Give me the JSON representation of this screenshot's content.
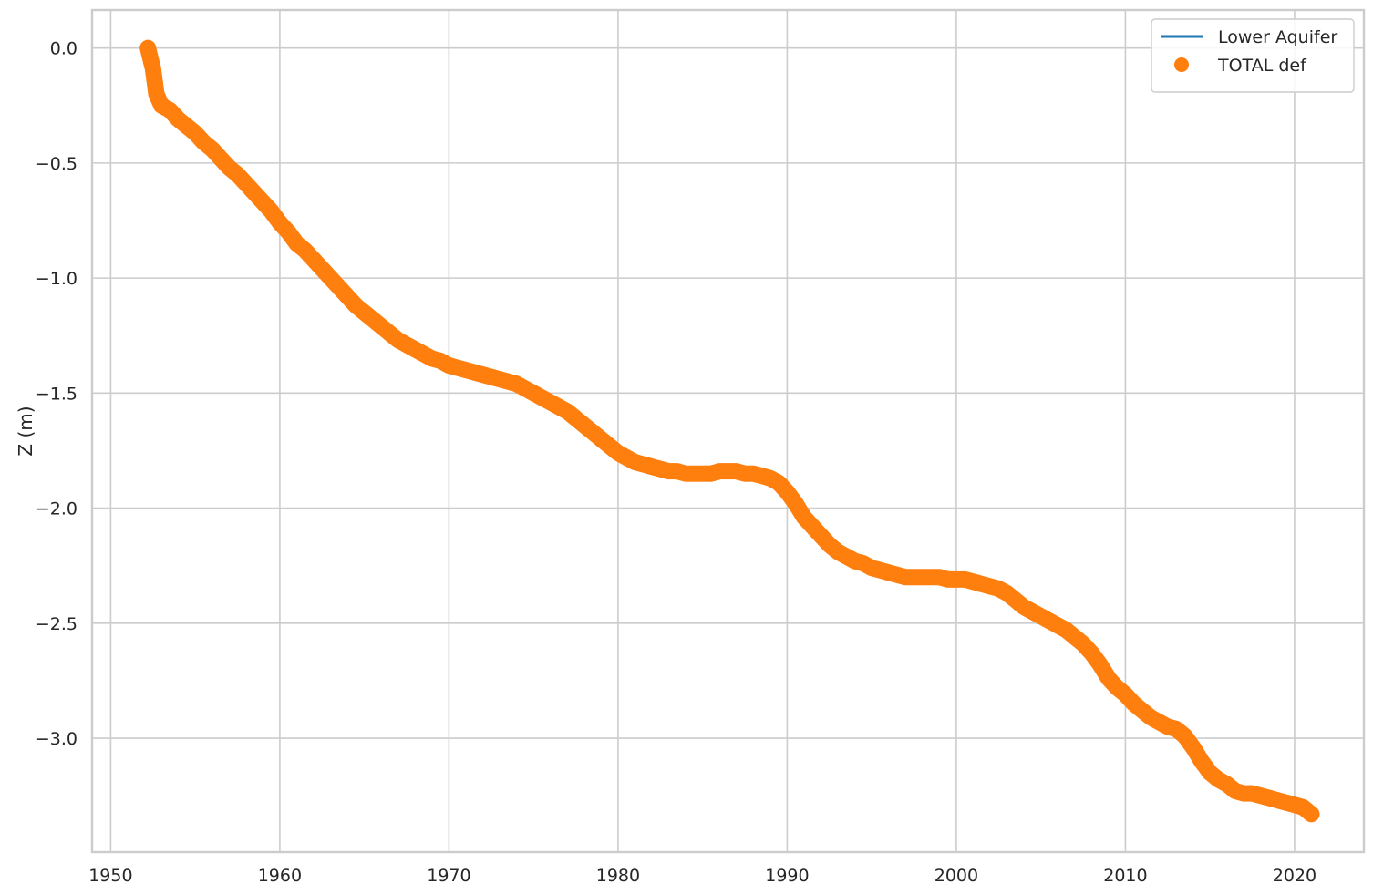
{
  "chart_data": {
    "type": "scatter",
    "title": "",
    "xlabel": "",
    "ylabel": "Z (m)",
    "xlim": [
      1948.9,
      2024.1
    ],
    "ylim": [
      -3.495,
      0.165
    ],
    "x_ticks": [
      1950,
      1960,
      1970,
      1980,
      1990,
      2000,
      2010,
      2020
    ],
    "y_ticks": [
      0.0,
      -0.5,
      -1.0,
      -1.5,
      -2.0,
      -2.5,
      -3.0
    ],
    "y_tick_labels": [
      "0.0",
      "−0.5",
      "−1.0",
      "−1.5",
      "−2.0",
      "−2.5",
      "−3.0"
    ],
    "grid": true,
    "legend_position": "top-right",
    "series": [
      {
        "name": "Lower Aquifer",
        "kind": "line",
        "color": "#1f77b4",
        "x": [],
        "y": []
      },
      {
        "name": "TOTAL def",
        "kind": "scatter",
        "color": "#ff7f0e",
        "x": [
          1952.2,
          1952.5,
          1952.7,
          1953.0,
          1953.5,
          1954.0,
          1954.5,
          1955.0,
          1955.5,
          1956.0,
          1956.5,
          1957.0,
          1957.5,
          1958.0,
          1958.5,
          1959.0,
          1959.5,
          1960.0,
          1960.5,
          1961.0,
          1961.5,
          1962.0,
          1962.5,
          1963.0,
          1963.5,
          1964.0,
          1964.5,
          1965.0,
          1965.5,
          1966.0,
          1966.5,
          1967.0,
          1967.5,
          1968.0,
          1968.5,
          1969.0,
          1969.5,
          1970.0,
          1970.5,
          1971.0,
          1971.5,
          1972.0,
          1972.5,
          1973.0,
          1973.5,
          1974.0,
          1974.5,
          1975.0,
          1975.5,
          1976.0,
          1976.5,
          1977.0,
          1977.5,
          1978.0,
          1978.5,
          1979.0,
          1979.5,
          1980.0,
          1980.5,
          1981.0,
          1981.5,
          1982.0,
          1982.5,
          1983.0,
          1983.5,
          1984.0,
          1984.5,
          1985.0,
          1985.5,
          1986.0,
          1986.5,
          1987.0,
          1987.5,
          1988.0,
          1988.5,
          1989.0,
          1989.5,
          1990.0,
          1990.5,
          1991.0,
          1991.5,
          1992.0,
          1992.5,
          1993.0,
          1993.5,
          1994.0,
          1994.5,
          1995.0,
          1995.5,
          1996.0,
          1996.5,
          1997.0,
          1997.5,
          1998.0,
          1998.5,
          1999.0,
          1999.5,
          2000.0,
          2000.5,
          2001.0,
          2001.5,
          2002.0,
          2002.5,
          2003.0,
          2003.5,
          2004.0,
          2004.5,
          2005.0,
          2005.5,
          2006.0,
          2006.5,
          2007.0,
          2007.5,
          2008.0,
          2008.5,
          2009.0,
          2009.5,
          2010.0,
          2010.5,
          2011.0,
          2011.5,
          2012.0,
          2012.5,
          2013.0,
          2013.5,
          2014.0,
          2014.5,
          2015.0,
          2015.5,
          2016.0,
          2016.5,
          2017.0,
          2017.5,
          2018.0,
          2018.5,
          2019.0,
          2019.5,
          2020.0,
          2020.5,
          2021.0
        ],
        "y": [
          0.0,
          -0.09,
          -0.2,
          -0.25,
          -0.27,
          -0.31,
          -0.34,
          -0.37,
          -0.41,
          -0.44,
          -0.48,
          -0.52,
          -0.55,
          -0.59,
          -0.63,
          -0.67,
          -0.71,
          -0.76,
          -0.8,
          -0.85,
          -0.88,
          -0.92,
          -0.96,
          -1.0,
          -1.04,
          -1.08,
          -1.12,
          -1.15,
          -1.18,
          -1.21,
          -1.24,
          -1.27,
          -1.29,
          -1.31,
          -1.33,
          -1.35,
          -1.36,
          -1.38,
          -1.39,
          -1.4,
          -1.41,
          -1.42,
          -1.43,
          -1.44,
          -1.45,
          -1.46,
          -1.48,
          -1.5,
          -1.52,
          -1.54,
          -1.56,
          -1.58,
          -1.61,
          -1.64,
          -1.67,
          -1.7,
          -1.73,
          -1.76,
          -1.78,
          -1.8,
          -1.81,
          -1.82,
          -1.83,
          -1.84,
          -1.84,
          -1.85,
          -1.85,
          -1.85,
          -1.85,
          -1.84,
          -1.84,
          -1.84,
          -1.85,
          -1.85,
          -1.86,
          -1.87,
          -1.89,
          -1.93,
          -1.98,
          -2.04,
          -2.08,
          -2.12,
          -2.16,
          -2.19,
          -2.21,
          -2.23,
          -2.24,
          -2.26,
          -2.27,
          -2.28,
          -2.29,
          -2.3,
          -2.3,
          -2.3,
          -2.3,
          -2.3,
          -2.31,
          -2.31,
          -2.31,
          -2.32,
          -2.33,
          -2.34,
          -2.35,
          -2.37,
          -2.4,
          -2.43,
          -2.45,
          -2.47,
          -2.49,
          -2.51,
          -2.53,
          -2.56,
          -2.59,
          -2.63,
          -2.68,
          -2.74,
          -2.78,
          -2.81,
          -2.85,
          -2.88,
          -2.91,
          -2.93,
          -2.95,
          -2.96,
          -2.99,
          -3.04,
          -3.1,
          -3.15,
          -3.18,
          -3.2,
          -3.23,
          -3.24,
          -3.24,
          -3.25,
          -3.26,
          -3.27,
          -3.28,
          -3.29,
          -3.3,
          -3.33
        ]
      }
    ]
  }
}
